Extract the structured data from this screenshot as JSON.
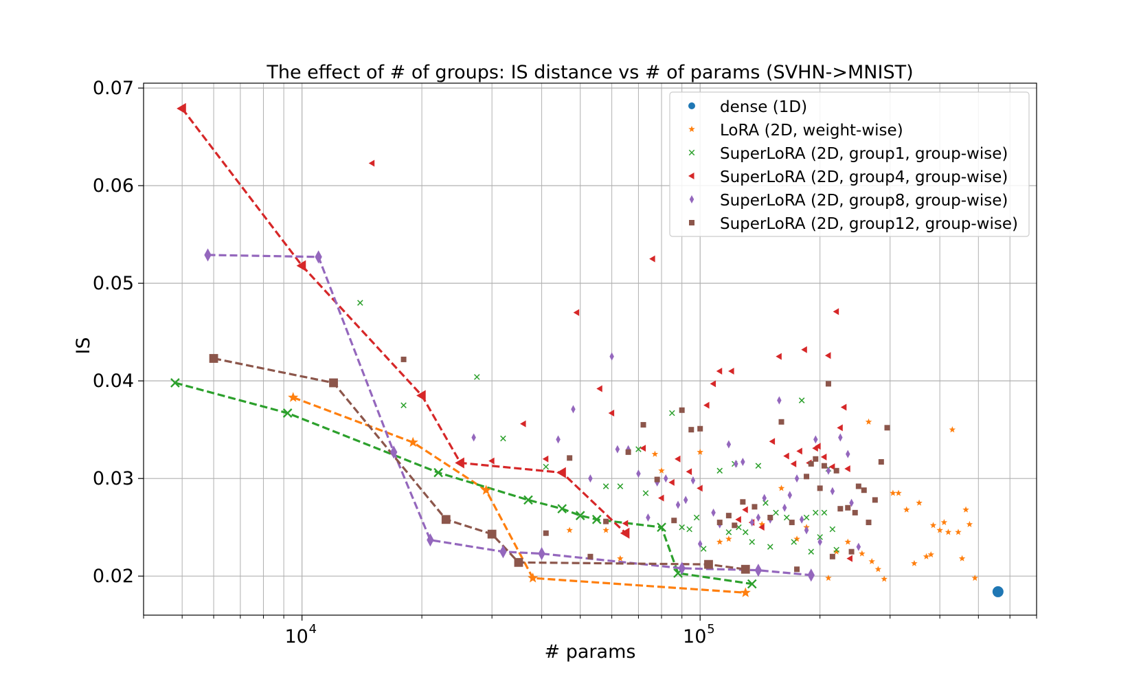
{
  "chart_data": {
    "type": "scatter",
    "title": "The effect of # of groups: IS distance vs # of params (SVHN->MNIST)",
    "xlabel": "# params",
    "ylabel": "IS",
    "xscale": "log",
    "xlim": [
      4000,
      700000
    ],
    "ylim": [
      0.016,
      0.0705
    ],
    "grid": true,
    "legend_position": "top-right",
    "x_tick_labels": [
      {
        "value": 10000,
        "base": "10",
        "exp": "4"
      },
      {
        "value": 100000,
        "base": "10",
        "exp": "5"
      }
    ],
    "y_ticks": [
      0.02,
      0.03,
      0.04,
      0.05,
      0.06,
      0.07
    ],
    "y_tick_labels": [
      "0.02",
      "0.03",
      "0.04",
      "0.05",
      "0.06",
      "0.07"
    ],
    "series": [
      {
        "name": "dense (1D)",
        "marker": "circle",
        "color": "#1f77b4",
        "points": [
          [
            560000,
            0.0184
          ]
        ],
        "line": []
      },
      {
        "name": "LoRA (2D, weight-wise)",
        "marker": "star",
        "color": "#ff7f0e",
        "points": [
          [
            47000,
            0.0247
          ],
          [
            58000,
            0.0247
          ],
          [
            63000,
            0.0218
          ],
          [
            77000,
            0.0325
          ],
          [
            80000,
            0.0308
          ],
          [
            100000,
            0.0327
          ],
          [
            112000,
            0.0235
          ],
          [
            118000,
            0.0238
          ],
          [
            143000,
            0.0253
          ],
          [
            160000,
            0.029
          ],
          [
            175000,
            0.0238
          ],
          [
            185000,
            0.025
          ],
          [
            210000,
            0.0198
          ],
          [
            220000,
            0.0225
          ],
          [
            235000,
            0.0235
          ],
          [
            255000,
            0.0223
          ],
          [
            265000,
            0.0358
          ],
          [
            270000,
            0.0215
          ],
          [
            280000,
            0.0207
          ],
          [
            290000,
            0.0197
          ],
          [
            305000,
            0.0285
          ],
          [
            315000,
            0.0285
          ],
          [
            330000,
            0.0268
          ],
          [
            345000,
            0.0213
          ],
          [
            355000,
            0.0275
          ],
          [
            370000,
            0.022
          ],
          [
            380000,
            0.0222
          ],
          [
            385000,
            0.0252
          ],
          [
            400000,
            0.0247
          ],
          [
            410000,
            0.0255
          ],
          [
            420000,
            0.0245
          ],
          [
            430000,
            0.035
          ],
          [
            445000,
            0.0245
          ],
          [
            455000,
            0.0218
          ],
          [
            465000,
            0.0268
          ],
          [
            475000,
            0.0253
          ],
          [
            490000,
            0.0198
          ]
        ],
        "line": [
          [
            9500,
            0.0383
          ],
          [
            19000,
            0.0337
          ],
          [
            29000,
            0.0288
          ],
          [
            38000,
            0.0198
          ],
          [
            130000,
            0.0183
          ]
        ]
      },
      {
        "name": "SuperLoRA (2D, group1, group-wise)",
        "marker": "x",
        "color": "#2ca02c",
        "points": [
          [
            14000,
            0.048
          ],
          [
            18000,
            0.0375
          ],
          [
            27500,
            0.0404
          ],
          [
            32000,
            0.0341
          ],
          [
            41000,
            0.0312
          ],
          [
            58000,
            0.0292
          ],
          [
            63000,
            0.0292
          ],
          [
            70000,
            0.033
          ],
          [
            73000,
            0.0285
          ],
          [
            85000,
            0.0367
          ],
          [
            90000,
            0.025
          ],
          [
            94000,
            0.0248
          ],
          [
            98000,
            0.026
          ],
          [
            102000,
            0.0228
          ],
          [
            112000,
            0.0308
          ],
          [
            118000,
            0.0245
          ],
          [
            122000,
            0.0315
          ],
          [
            125000,
            0.025
          ],
          [
            130000,
            0.0245
          ],
          [
            135000,
            0.0235
          ],
          [
            140000,
            0.0313
          ],
          [
            146000,
            0.0275
          ],
          [
            150000,
            0.023
          ],
          [
            155000,
            0.0265
          ],
          [
            165000,
            0.026
          ],
          [
            172000,
            0.0235
          ],
          [
            180000,
            0.038
          ],
          [
            185000,
            0.026
          ],
          [
            190000,
            0.0225
          ],
          [
            195000,
            0.0265
          ],
          [
            200000,
            0.024
          ],
          [
            205000,
            0.0265
          ],
          [
            210000,
            0.031
          ],
          [
            215000,
            0.0248
          ],
          [
            220000,
            0.0227
          ]
        ],
        "line": [
          [
            4800,
            0.0398
          ],
          [
            9200,
            0.0367
          ],
          [
            22000,
            0.0306
          ],
          [
            37000,
            0.0278
          ],
          [
            45000,
            0.0269
          ],
          [
            50000,
            0.0262
          ],
          [
            55000,
            0.0258
          ],
          [
            80000,
            0.025
          ],
          [
            88000,
            0.0203
          ],
          [
            135000,
            0.0192
          ]
        ]
      },
      {
        "name": "SuperLoRA (2D, group4, group-wise)",
        "marker": "triangle-left",
        "color": "#d62728",
        "points": [
          [
            15000,
            0.0623
          ],
          [
            30000,
            0.0318
          ],
          [
            36000,
            0.0356
          ],
          [
            41000,
            0.032
          ],
          [
            49000,
            0.047
          ],
          [
            56000,
            0.0392
          ],
          [
            60000,
            0.0367
          ],
          [
            65000,
            0.0254
          ],
          [
            72000,
            0.0331
          ],
          [
            76000,
            0.0525
          ],
          [
            80000,
            0.028
          ],
          [
            85000,
            0.0296
          ],
          [
            88000,
            0.032
          ],
          [
            94000,
            0.0307
          ],
          [
            100000,
            0.029
          ],
          [
            104000,
            0.0375
          ],
          [
            108000,
            0.0397
          ],
          [
            112000,
            0.041
          ],
          [
            120000,
            0.041
          ],
          [
            125000,
            0.0258
          ],
          [
            130000,
            0.0268
          ],
          [
            135000,
            0.0255
          ],
          [
            143000,
            0.025
          ],
          [
            152000,
            0.0338
          ],
          [
            158000,
            0.0425
          ],
          [
            165000,
            0.0323
          ],
          [
            172000,
            0.0315
          ],
          [
            178000,
            0.0328
          ],
          [
            183000,
            0.0432
          ],
          [
            188000,
            0.0316
          ],
          [
            195000,
            0.0331
          ],
          [
            198000,
            0.0333
          ],
          [
            205000,
            0.0322
          ],
          [
            210000,
            0.0426
          ],
          [
            215000,
            0.0312
          ],
          [
            220000,
            0.0471
          ],
          [
            225000,
            0.0352
          ],
          [
            230000,
            0.0373
          ],
          [
            235000,
            0.031
          ],
          [
            238000,
            0.0218
          ]
        ],
        "line": [
          [
            5000,
            0.0679
          ],
          [
            10000,
            0.0518
          ],
          [
            20000,
            0.0385
          ],
          [
            25000,
            0.0316
          ],
          [
            45000,
            0.0306
          ],
          [
            65000,
            0.0244
          ]
        ]
      },
      {
        "name": "SuperLoRA (2D, group8, group-wise)",
        "marker": "diamond",
        "color": "#9467bd",
        "points": [
          [
            27000,
            0.0342
          ],
          [
            44000,
            0.034
          ],
          [
            48000,
            0.0371
          ],
          [
            53000,
            0.03
          ],
          [
            60000,
            0.0425
          ],
          [
            62000,
            0.033
          ],
          [
            66000,
            0.033
          ],
          [
            70000,
            0.0305
          ],
          [
            74000,
            0.026
          ],
          [
            78000,
            0.0296
          ],
          [
            82000,
            0.03
          ],
          [
            88000,
            0.0273
          ],
          [
            92000,
            0.0278
          ],
          [
            96000,
            0.0298
          ],
          [
            100000,
            0.0233
          ],
          [
            108000,
            0.0265
          ],
          [
            112000,
            0.0253
          ],
          [
            118000,
            0.0335
          ],
          [
            123000,
            0.0315
          ],
          [
            128000,
            0.0317
          ],
          [
            135000,
            0.0255
          ],
          [
            140000,
            0.026
          ],
          [
            145000,
            0.028
          ],
          [
            150000,
            0.0258
          ],
          [
            158000,
            0.038
          ],
          [
            163000,
            0.027
          ],
          [
            168000,
            0.0283
          ],
          [
            175000,
            0.03
          ],
          [
            180000,
            0.0258
          ],
          [
            185000,
            0.0247
          ],
          [
            195000,
            0.034
          ],
          [
            200000,
            0.0235
          ],
          [
            210000,
            0.0308
          ],
          [
            215000,
            0.0287
          ],
          [
            225000,
            0.0342
          ],
          [
            235000,
            0.0325
          ],
          [
            240000,
            0.0275
          ],
          [
            250000,
            0.023
          ]
        ],
        "line": [
          [
            5800,
            0.0529
          ],
          [
            11000,
            0.0527
          ],
          [
            17000,
            0.0327
          ],
          [
            21000,
            0.0237
          ],
          [
            32000,
            0.0225
          ],
          [
            40000,
            0.0223
          ],
          [
            90000,
            0.0208
          ],
          [
            140000,
            0.0206
          ],
          [
            190000,
            0.0201
          ]
        ]
      },
      {
        "name": "SuperLoRA (2D, group12, group-wise)",
        "marker": "square",
        "color": "#8c564b",
        "points": [
          [
            18000,
            0.0422
          ],
          [
            41000,
            0.0244
          ],
          [
            47000,
            0.0321
          ],
          [
            53000,
            0.022
          ],
          [
            58000,
            0.0256
          ],
          [
            66000,
            0.0327
          ],
          [
            72000,
            0.0355
          ],
          [
            78000,
            0.0299
          ],
          [
            86000,
            0.0257
          ],
          [
            90000,
            0.037
          ],
          [
            95000,
            0.035
          ],
          [
            100000,
            0.0351
          ],
          [
            112000,
            0.0255
          ],
          [
            118000,
            0.0262
          ],
          [
            122000,
            0.0252
          ],
          [
            128000,
            0.0276
          ],
          [
            137000,
            0.0271
          ],
          [
            150000,
            0.026
          ],
          [
            160000,
            0.0358
          ],
          [
            170000,
            0.0255
          ],
          [
            175000,
            0.0207
          ],
          [
            185000,
            0.0302
          ],
          [
            190000,
            0.0315
          ],
          [
            195000,
            0.032
          ],
          [
            200000,
            0.029
          ],
          [
            205000,
            0.0313
          ],
          [
            210000,
            0.0397
          ],
          [
            215000,
            0.022
          ],
          [
            220000,
            0.0308
          ],
          [
            225000,
            0.0269
          ],
          [
            235000,
            0.027
          ],
          [
            240000,
            0.0225
          ],
          [
            245000,
            0.0265
          ],
          [
            250000,
            0.0292
          ],
          [
            258000,
            0.0288
          ],
          [
            265000,
            0.0255
          ],
          [
            275000,
            0.0278
          ],
          [
            285000,
            0.0317
          ],
          [
            295000,
            0.0352
          ]
        ],
        "line": [
          [
            6000,
            0.0423
          ],
          [
            12000,
            0.0398
          ],
          [
            23000,
            0.0258
          ],
          [
            30000,
            0.0243
          ],
          [
            35000,
            0.0214
          ],
          [
            105000,
            0.0212
          ],
          [
            130000,
            0.0207
          ]
        ]
      }
    ]
  }
}
